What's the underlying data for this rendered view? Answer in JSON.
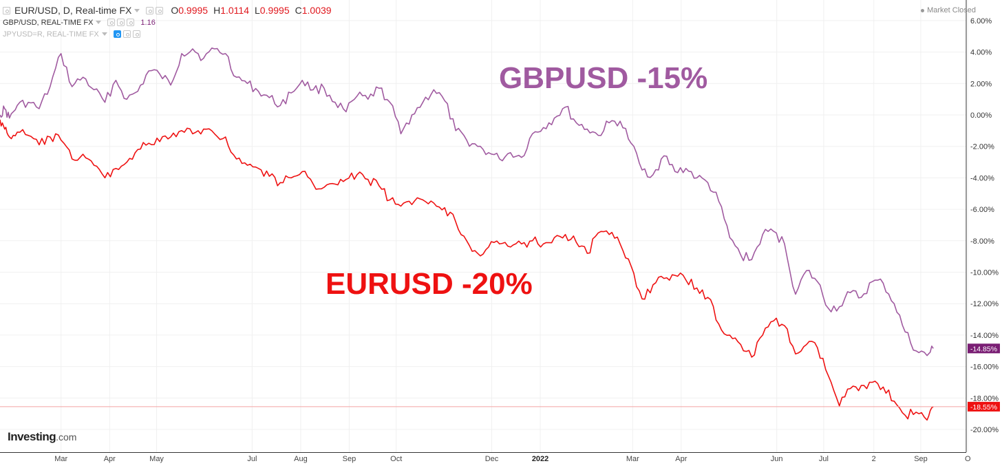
{
  "legend": {
    "main_title": "EUR/USD, D, Real-time FX",
    "ohlc": [
      {
        "key": "O",
        "value": "0.9995"
      },
      {
        "key": "H",
        "value": "1.0114"
      },
      {
        "key": "L",
        "value": "0.9995"
      },
      {
        "key": "C",
        "value": "1.0039"
      }
    ],
    "row2_title": "GBP/USD, REAL-TIME FX",
    "row2_value": "1.16",
    "row3_title": "JPYUSD=R, REAL-TIME FX"
  },
  "status": {
    "market": "Market Closed"
  },
  "brand": {
    "logo_main": "Investing",
    "logo_suffix": ".com"
  },
  "colors": {
    "eurusd": "#ee1111",
    "gbpusd": "#a05aa0",
    "gbp_label_bg": "#7a1e74",
    "eur_label_bg": "#ee1111",
    "grid": "#f0f0f0"
  },
  "chart_data": {
    "type": "line",
    "yaxis": {
      "range": [
        -21.5,
        6.5
      ],
      "ticks": [
        6,
        4,
        2,
        0,
        -2,
        -4,
        -6,
        -8,
        -10,
        -12,
        -14,
        -16,
        -18,
        -20
      ],
      "tick_labels": [
        "6.00%",
        "4.00%",
        "2.00%",
        "0.00%",
        "-2.00%",
        "-4.00%",
        "-6.00%",
        "-8.00%",
        "-10.00%",
        "-12.00%",
        "-14.00%",
        "-16.00%",
        "-18.00%",
        "-20.00%"
      ]
    },
    "xaxis": {
      "range": [
        "2021-01-21",
        "2022-09-30"
      ],
      "ticks": [
        {
          "date": "2021-03-01",
          "label": "Mar",
          "bold": false
        },
        {
          "date": "2021-04-01",
          "label": "Apr",
          "bold": false
        },
        {
          "date": "2021-05-01",
          "label": "May",
          "bold": false
        },
        {
          "date": "2021-07-01",
          "label": "Jul",
          "bold": false
        },
        {
          "date": "2021-08-01",
          "label": "Aug",
          "bold": false
        },
        {
          "date": "2021-09-01",
          "label": "Sep",
          "bold": false
        },
        {
          "date": "2021-10-01",
          "label": "Oct",
          "bold": false
        },
        {
          "date": "2021-12-01",
          "label": "Dec",
          "bold": false
        },
        {
          "date": "2022-01-01",
          "label": "2022",
          "bold": true
        },
        {
          "date": "2022-03-01",
          "label": "Mar",
          "bold": false
        },
        {
          "date": "2022-04-01",
          "label": "Apr",
          "bold": false
        },
        {
          "date": "2022-06-01",
          "label": "Jun",
          "bold": false
        },
        {
          "date": "2022-07-01",
          "label": "Jul",
          "bold": false
        },
        {
          "date": "2022-08-02",
          "label": "2",
          "bold": false
        },
        {
          "date": "2022-09-01",
          "label": "Sep",
          "bold": false
        },
        {
          "date": "2022-10-01",
          "label": "O",
          "bold": false
        }
      ]
    },
    "series": [
      {
        "name": "GBP/USD",
        "color": "#a05aa0",
        "last_label": "-14.85%",
        "last_value": -14.85,
        "annotation": "GBPUSD -15%",
        "points": [
          [
            "2021-01-21",
            0.0
          ],
          [
            "2021-01-24",
            0.4
          ],
          [
            "2021-01-27",
            -0.2
          ],
          [
            "2021-02-01",
            0.6
          ],
          [
            "2021-02-08",
            0.8
          ],
          [
            "2021-02-15",
            0.4
          ],
          [
            "2021-02-22",
            1.8
          ],
          [
            "2021-03-01",
            3.9
          ],
          [
            "2021-03-08",
            1.8
          ],
          [
            "2021-03-15",
            2.4
          ],
          [
            "2021-03-22",
            1.6
          ],
          [
            "2021-03-29",
            0.8
          ],
          [
            "2021-04-05",
            2.2
          ],
          [
            "2021-04-12",
            1.0
          ],
          [
            "2021-04-19",
            1.5
          ],
          [
            "2021-04-26",
            2.8
          ],
          [
            "2021-05-03",
            2.6
          ],
          [
            "2021-05-10",
            1.9
          ],
          [
            "2021-05-17",
            3.9
          ],
          [
            "2021-05-24",
            4.2
          ],
          [
            "2021-05-31",
            3.6
          ],
          [
            "2021-06-07",
            4.2
          ],
          [
            "2021-06-14",
            3.9
          ],
          [
            "2021-06-21",
            2.4
          ],
          [
            "2021-06-28",
            2.0
          ],
          [
            "2021-07-05",
            1.5
          ],
          [
            "2021-07-12",
            1.1
          ],
          [
            "2021-07-19",
            0.6
          ],
          [
            "2021-07-26",
            1.4
          ],
          [
            "2021-08-02",
            2.2
          ],
          [
            "2021-08-09",
            1.6
          ],
          [
            "2021-08-16",
            1.7
          ],
          [
            "2021-08-23",
            0.8
          ],
          [
            "2021-08-30",
            0.2
          ],
          [
            "2021-09-06",
            1.2
          ],
          [
            "2021-09-13",
            1.0
          ],
          [
            "2021-09-20",
            1.7
          ],
          [
            "2021-09-27",
            0.8
          ],
          [
            "2021-10-04",
            -1.2
          ],
          [
            "2021-10-11",
            0.0
          ],
          [
            "2021-10-18",
            0.8
          ],
          [
            "2021-10-25",
            1.6
          ],
          [
            "2021-11-01",
            0.9
          ],
          [
            "2021-11-08",
            -1.0
          ],
          [
            "2021-11-15",
            -1.6
          ],
          [
            "2021-11-22",
            -2.0
          ],
          [
            "2021-11-29",
            -2.4
          ],
          [
            "2021-12-06",
            -2.8
          ],
          [
            "2021-12-13",
            -2.4
          ],
          [
            "2021-12-20",
            -2.7
          ],
          [
            "2021-12-27",
            -1.2
          ],
          [
            "2022-01-03",
            -0.8
          ],
          [
            "2022-01-10",
            -0.2
          ],
          [
            "2022-01-17",
            0.5
          ],
          [
            "2022-01-24",
            -0.5
          ],
          [
            "2022-01-31",
            -0.9
          ],
          [
            "2022-02-07",
            -1.3
          ],
          [
            "2022-02-14",
            -0.5
          ],
          [
            "2022-02-21",
            -0.4
          ],
          [
            "2022-02-28",
            -1.8
          ],
          [
            "2022-03-07",
            -3.5
          ],
          [
            "2022-03-14",
            -3.8
          ],
          [
            "2022-03-21",
            -2.6
          ],
          [
            "2022-03-28",
            -3.6
          ],
          [
            "2022-04-04",
            -3.4
          ],
          [
            "2022-04-11",
            -4.0
          ],
          [
            "2022-04-18",
            -4.3
          ],
          [
            "2022-04-25",
            -5.5
          ],
          [
            "2022-05-02",
            -7.8
          ],
          [
            "2022-05-09",
            -8.9
          ],
          [
            "2022-05-16",
            -9.2
          ],
          [
            "2022-05-23",
            -7.6
          ],
          [
            "2022-05-30",
            -7.4
          ],
          [
            "2022-06-06",
            -8.2
          ],
          [
            "2022-06-13",
            -11.4
          ],
          [
            "2022-06-20",
            -9.9
          ],
          [
            "2022-06-27",
            -10.6
          ],
          [
            "2022-07-04",
            -12.3
          ],
          [
            "2022-07-11",
            -12.2
          ],
          [
            "2022-07-18",
            -11.3
          ],
          [
            "2022-07-25",
            -11.6
          ],
          [
            "2022-08-01",
            -10.6
          ],
          [
            "2022-08-08",
            -10.7
          ],
          [
            "2022-08-15",
            -12.0
          ],
          [
            "2022-08-22",
            -13.8
          ],
          [
            "2022-08-29",
            -15.0
          ],
          [
            "2022-09-05",
            -15.3
          ],
          [
            "2022-09-09",
            -14.85
          ]
        ]
      },
      {
        "name": "EUR/USD",
        "color": "#ee1111",
        "last_label": "-18.55%",
        "last_value": -18.55,
        "annotation": "EURUSD -20%",
        "points": [
          [
            "2021-01-21",
            -0.3
          ],
          [
            "2021-01-24",
            -0.9
          ],
          [
            "2021-01-27",
            -1.4
          ],
          [
            "2021-02-01",
            -1.1
          ],
          [
            "2021-02-08",
            -1.3
          ],
          [
            "2021-02-15",
            -1.9
          ],
          [
            "2021-02-22",
            -1.4
          ],
          [
            "2021-03-01",
            -1.6
          ],
          [
            "2021-03-08",
            -2.8
          ],
          [
            "2021-03-15",
            -2.5
          ],
          [
            "2021-03-22",
            -3.2
          ],
          [
            "2021-03-29",
            -4.0
          ],
          [
            "2021-04-05",
            -3.4
          ],
          [
            "2021-04-12",
            -3.0
          ],
          [
            "2021-04-19",
            -2.2
          ],
          [
            "2021-04-26",
            -1.8
          ],
          [
            "2021-05-03",
            -1.7
          ],
          [
            "2021-05-10",
            -1.4
          ],
          [
            "2021-05-17",
            -1.0
          ],
          [
            "2021-05-24",
            -1.2
          ],
          [
            "2021-05-31",
            -0.9
          ],
          [
            "2021-06-07",
            -1.2
          ],
          [
            "2021-06-14",
            -1.4
          ],
          [
            "2021-06-21",
            -2.8
          ],
          [
            "2021-06-28",
            -3.2
          ],
          [
            "2021-07-05",
            -3.4
          ],
          [
            "2021-07-12",
            -3.9
          ],
          [
            "2021-07-19",
            -4.3
          ],
          [
            "2021-07-26",
            -4.0
          ],
          [
            "2021-08-02",
            -3.6
          ],
          [
            "2021-08-09",
            -4.4
          ],
          [
            "2021-08-16",
            -4.6
          ],
          [
            "2021-08-23",
            -4.4
          ],
          [
            "2021-08-30",
            -4.1
          ],
          [
            "2021-09-06",
            -3.8
          ],
          [
            "2021-09-13",
            -4.1
          ],
          [
            "2021-09-20",
            -4.5
          ],
          [
            "2021-09-27",
            -5.4
          ],
          [
            "2021-10-04",
            -5.8
          ],
          [
            "2021-10-11",
            -5.7
          ],
          [
            "2021-10-18",
            -5.4
          ],
          [
            "2021-10-25",
            -5.6
          ],
          [
            "2021-11-01",
            -5.9
          ],
          [
            "2021-11-08",
            -6.8
          ],
          [
            "2021-11-15",
            -8.0
          ],
          [
            "2021-11-22",
            -8.8
          ],
          [
            "2021-11-29",
            -8.4
          ],
          [
            "2021-12-06",
            -8.2
          ],
          [
            "2021-12-13",
            -8.4
          ],
          [
            "2021-12-20",
            -8.2
          ],
          [
            "2021-12-27",
            -8.0
          ],
          [
            "2022-01-03",
            -8.2
          ],
          [
            "2022-01-10",
            -7.8
          ],
          [
            "2022-01-17",
            -7.6
          ],
          [
            "2022-01-24",
            -8.1
          ],
          [
            "2022-01-31",
            -8.8
          ],
          [
            "2022-02-07",
            -7.5
          ],
          [
            "2022-02-14",
            -7.6
          ],
          [
            "2022-02-21",
            -8.2
          ],
          [
            "2022-02-28",
            -9.6
          ],
          [
            "2022-03-07",
            -11.7
          ],
          [
            "2022-03-14",
            -10.8
          ],
          [
            "2022-03-21",
            -10.4
          ],
          [
            "2022-03-28",
            -10.2
          ],
          [
            "2022-04-04",
            -10.5
          ],
          [
            "2022-04-11",
            -11.0
          ],
          [
            "2022-04-18",
            -11.6
          ],
          [
            "2022-04-25",
            -13.3
          ],
          [
            "2022-05-02",
            -14.0
          ],
          [
            "2022-05-09",
            -14.6
          ],
          [
            "2022-05-16",
            -15.4
          ],
          [
            "2022-05-23",
            -14.0
          ],
          [
            "2022-05-30",
            -13.1
          ],
          [
            "2022-06-06",
            -13.4
          ],
          [
            "2022-06-13",
            -15.2
          ],
          [
            "2022-06-20",
            -14.6
          ],
          [
            "2022-06-27",
            -14.8
          ],
          [
            "2022-07-04",
            -16.6
          ],
          [
            "2022-07-11",
            -18.5
          ],
          [
            "2022-07-18",
            -17.4
          ],
          [
            "2022-07-25",
            -17.2
          ],
          [
            "2022-08-01",
            -17.0
          ],
          [
            "2022-08-08",
            -17.3
          ],
          [
            "2022-08-15",
            -18.2
          ],
          [
            "2022-08-22",
            -19.1
          ],
          [
            "2022-08-29",
            -18.9
          ],
          [
            "2022-09-05",
            -19.4
          ],
          [
            "2022-09-09",
            -18.55
          ]
        ]
      }
    ]
  }
}
